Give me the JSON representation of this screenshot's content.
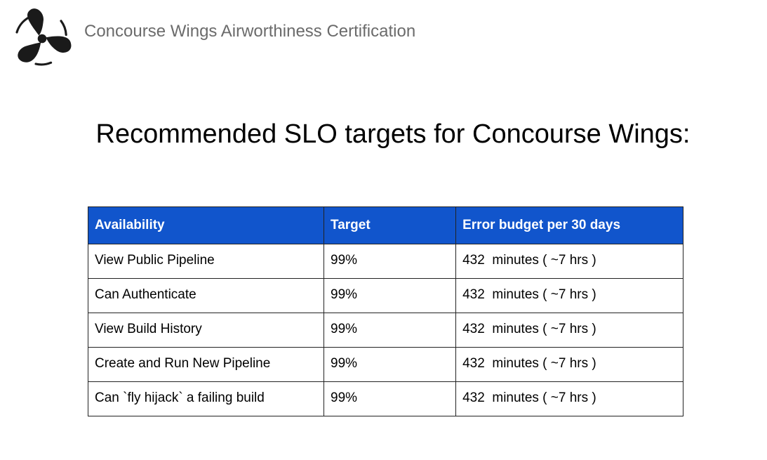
{
  "header": {
    "title": "Concourse Wings Airworthiness Certification",
    "logo_icon": "propeller-logo-icon"
  },
  "slide": {
    "title": "Recommended SLO targets for Concourse Wings:"
  },
  "table": {
    "header_color": "#1155cc",
    "columns": [
      "Availability",
      "Target",
      "Error budget per 30 days"
    ],
    "rows": [
      [
        "View Public Pipeline",
        "99%",
        "432  minutes ( ~7 hrs )"
      ],
      [
        "Can Authenticate",
        "99%",
        "432  minutes ( ~7 hrs )"
      ],
      [
        "View Build History",
        "99%",
        "432  minutes ( ~7 hrs )"
      ],
      [
        "Create and Run New Pipeline",
        "99%",
        "432  minutes ( ~7 hrs )"
      ],
      [
        "Can `fly hijack` a failing build",
        "99%",
        "432  minutes ( ~7 hrs )"
      ]
    ]
  }
}
